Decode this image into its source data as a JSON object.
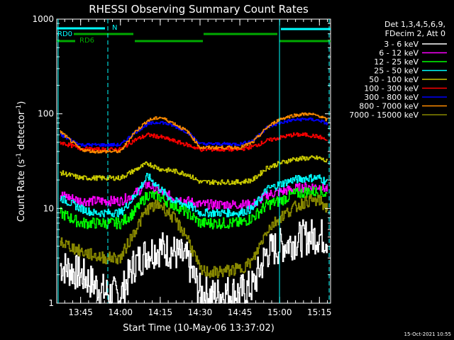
{
  "chart_data": {
    "type": "line",
    "title": "RHESSI Observing Summary Count Rates",
    "xlabel": "Start Time (10-May-06 13:37:02)",
    "ylabel_main": "Count Rate (s",
    "ylabel_sup1": "-1",
    "ylabel_mid": " detector",
    "ylabel_sup2": "-1",
    "ylabel_end": ")",
    "y_scale": "log",
    "ylim": [
      1,
      1000
    ],
    "xlim_minutes": [
      13.6,
      15.32
    ],
    "x_ticks": [
      {
        "label": "13:45",
        "t": 13.75
      },
      {
        "label": "14:00",
        "t": 14.0
      },
      {
        "label": "14:15",
        "t": 14.25
      },
      {
        "label": "14:30",
        "t": 14.5
      },
      {
        "label": "14:45",
        "t": 14.75
      },
      {
        "label": "15:00",
        "t": 15.0
      },
      {
        "label": "15:15",
        "t": 15.25
      }
    ],
    "y_ticks": [
      {
        "label": "1",
        "v": 1
      },
      {
        "label": "10",
        "v": 10
      },
      {
        "label": "100",
        "v": 100
      },
      {
        "label": "1000",
        "v": 1000
      }
    ],
    "legend_header": [
      "Det 1,3,4,5,6,9,",
      "FDecim 2, Att 0"
    ],
    "legend_placement": "right",
    "series": [
      {
        "name": "3 - 6 keV",
        "color": "#ffffff"
      },
      {
        "name": "6 - 12 keV",
        "color": "#ff00ff"
      },
      {
        "name": "12 - 25 keV",
        "color": "#00ff00"
      },
      {
        "name": "25 - 50 keV",
        "color": "#00ffff"
      },
      {
        "name": "50 - 100 keV",
        "color": "#cccc00"
      },
      {
        "name": "100 - 300 keV",
        "color": "#ff0000"
      },
      {
        "name": "300 - 800 keV",
        "color": "#0000ff"
      },
      {
        "name": "800 - 7000 keV",
        "color": "#ff8c00"
      },
      {
        "name": "7000 - 15000 keV",
        "color": "#888800"
      }
    ],
    "x_samples": [
      13.62,
      13.75,
      13.83,
      13.9,
      14.0,
      14.08,
      14.17,
      14.25,
      14.33,
      14.42,
      14.5,
      14.58,
      14.67,
      14.75,
      14.83,
      14.92,
      15.0,
      15.08,
      15.17,
      15.25,
      15.3
    ],
    "series_values": [
      [
        2.5,
        2.0,
        1.6,
        1.3,
        1.2,
        2.5,
        3.5,
        3.8,
        3.5,
        2.8,
        1.3,
        1.2,
        1.3,
        1.3,
        1.5,
        3.5,
        4.0,
        4.5,
        5.0,
        5.2,
        4.8
      ],
      [
        14,
        12,
        12,
        12,
        12,
        14,
        18,
        15,
        13,
        12,
        11,
        11,
        11,
        11,
        11,
        14,
        15,
        16,
        17,
        17,
        16
      ],
      [
        9,
        7,
        7,
        7,
        7,
        9,
        14,
        13,
        11,
        9,
        7,
        7,
        7,
        7,
        8,
        11,
        12,
        14,
        15,
        15,
        14
      ],
      [
        13,
        10,
        9,
        9,
        9,
        13,
        22,
        16,
        12,
        11,
        9,
        9,
        9,
        9,
        10,
        16,
        18,
        20,
        21,
        21,
        19
      ],
      [
        24,
        21,
        21,
        21,
        21,
        25,
        30,
        26,
        25,
        23,
        19,
        19,
        19,
        19,
        20,
        27,
        30,
        33,
        34,
        34,
        31
      ],
      [
        50,
        43,
        42,
        42,
        42,
        52,
        60,
        57,
        52,
        47,
        42,
        42,
        42,
        42,
        45,
        52,
        56,
        60,
        60,
        57,
        52
      ],
      [
        60,
        47,
        47,
        47,
        47,
        62,
        78,
        82,
        75,
        64,
        48,
        48,
        48,
        48,
        52,
        72,
        80,
        86,
        88,
        85,
        78
      ],
      [
        65,
        42,
        40,
        40,
        40,
        62,
        85,
        92,
        80,
        65,
        44,
        44,
        44,
        44,
        50,
        72,
        88,
        96,
        100,
        95,
        85
      ],
      [
        4.5,
        3.5,
        3.2,
        3.0,
        3.0,
        5.5,
        10,
        11,
        8,
        5,
        2.2,
        2.1,
        2.2,
        2.3,
        2.8,
        6,
        8,
        10,
        12,
        12,
        10
      ]
    ],
    "annotations": [
      {
        "label": "RD0",
        "color": "#00ffff"
      },
      {
        "label": "RD6",
        "color": "#00aa00"
      },
      {
        "label": "N",
        "color": "#00ffff"
      }
    ],
    "footer_date": "15-Oct-2021 10:55"
  }
}
